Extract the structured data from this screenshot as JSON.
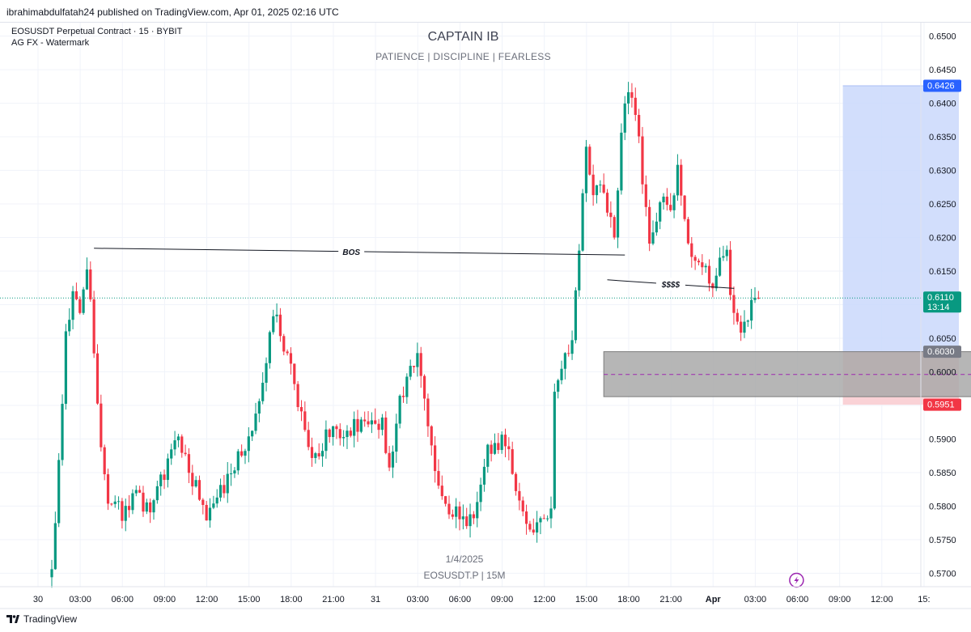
{
  "header": {
    "published": "ibrahimabdulfatah24 published on TradingView.com, Apr 01, 2025 02:16 UTC",
    "symbol_line": "EOSUSDT Perpetual Contract · 15 · BYBIT",
    "indicator_line": "AG FX - Watermark"
  },
  "watermark": {
    "title": "CAPTAIN IB",
    "subtitle": "PATIENCE  |  DISCIPLINE  |  FEARLESS",
    "date": "1/4/2025",
    "symbol": "EOSUSDT.P | 15M"
  },
  "footer": {
    "brand": "TradingView"
  },
  "chart_data": {
    "type": "candlestick",
    "ylim": [
      0.568,
      0.652
    ],
    "price_scale_ticks": [
      0.57,
      0.575,
      0.58,
      0.585,
      0.59,
      0.595,
      0.6,
      0.605,
      0.61,
      0.615,
      0.62,
      0.625,
      0.63,
      0.635,
      0.64,
      0.645,
      0.65
    ],
    "time_ticks": [
      {
        "label": "30",
        "bar": 0
      },
      {
        "label": "03:00",
        "bar": 12
      },
      {
        "label": "06:00",
        "bar": 24
      },
      {
        "label": "09:00",
        "bar": 36
      },
      {
        "label": "12:00",
        "bar": 48
      },
      {
        "label": "15:00",
        "bar": 60
      },
      {
        "label": "18:00",
        "bar": 72
      },
      {
        "label": "21:00",
        "bar": 84
      },
      {
        "label": "31",
        "bar": 96
      },
      {
        "label": "03:00",
        "bar": 108
      },
      {
        "label": "06:00",
        "bar": 120
      },
      {
        "label": "09:00",
        "bar": 132
      },
      {
        "label": "12:00",
        "bar": 144
      },
      {
        "label": "15:00",
        "bar": 156
      },
      {
        "label": "18:00",
        "bar": 168
      },
      {
        "label": "21:00",
        "bar": 180
      },
      {
        "label": "Apr",
        "bar": 192
      },
      {
        "label": "03:00",
        "bar": 204
      },
      {
        "label": "06:00",
        "bar": 216
      },
      {
        "label": "09:00",
        "bar": 228
      },
      {
        "label": "12:00",
        "bar": 240
      },
      {
        "label": "15:",
        "bar": 252
      }
    ],
    "keypoints": [
      [
        0,
        0.57
      ],
      [
        2,
        0.586
      ],
      [
        4,
        0.607
      ],
      [
        6,
        0.611
      ],
      [
        8,
        0.6085
      ],
      [
        10,
        0.616
      ],
      [
        11,
        0.6115
      ],
      [
        14,
        0.589
      ],
      [
        16,
        0.581
      ],
      [
        20,
        0.579
      ],
      [
        24,
        0.5815
      ],
      [
        28,
        0.579
      ],
      [
        32,
        0.585
      ],
      [
        36,
        0.59
      ],
      [
        40,
        0.584
      ],
      [
        44,
        0.579
      ],
      [
        48,
        0.582
      ],
      [
        52,
        0.586
      ],
      [
        56,
        0.59
      ],
      [
        60,
        0.599
      ],
      [
        63,
        0.609
      ],
      [
        66,
        0.604
      ],
      [
        70,
        0.596
      ],
      [
        74,
        0.587
      ],
      [
        76,
        0.587
      ],
      [
        78,
        0.592
      ],
      [
        82,
        0.59
      ],
      [
        86,
        0.592
      ],
      [
        90,
        0.593
      ],
      [
        94,
        0.592
      ],
      [
        96,
        0.585
      ],
      [
        99,
        0.596
      ],
      [
        104,
        0.603
      ],
      [
        108,
        0.588
      ],
      [
        112,
        0.58
      ],
      [
        116,
        0.579
      ],
      [
        120,
        0.577
      ],
      [
        124,
        0.588
      ],
      [
        128,
        0.59
      ],
      [
        131,
        0.586
      ],
      [
        134,
        0.578
      ],
      [
        136,
        0.576
      ],
      [
        140,
        0.5785
      ],
      [
        142,
        0.5795
      ],
      [
        143,
        0.596
      ],
      [
        145,
        0.601
      ],
      [
        148,
        0.604
      ],
      [
        150,
        0.618
      ],
      [
        152,
        0.634
      ],
      [
        154,
        0.626
      ],
      [
        156,
        0.628
      ],
      [
        158,
        0.625
      ],
      [
        160,
        0.62
      ],
      [
        162,
        0.636
      ],
      [
        164,
        0.642
      ],
      [
        166,
        0.639
      ],
      [
        168,
        0.629
      ],
      [
        170,
        0.62
      ],
      [
        172,
        0.623
      ],
      [
        174,
        0.627
      ],
      [
        176,
        0.625
      ],
      [
        178,
        0.63
      ],
      [
        180,
        0.622
      ],
      [
        182,
        0.618
      ],
      [
        185,
        0.616
      ],
      [
        188,
        0.612
      ],
      [
        190,
        0.616
      ],
      [
        192,
        0.617
      ],
      [
        194,
        0.608
      ],
      [
        196,
        0.605
      ],
      [
        198,
        0.608
      ],
      [
        200,
        0.611
      ],
      [
        201,
        0.611
      ]
    ],
    "annotations": {
      "bos": {
        "label": "BOS",
        "from": [
          12,
          0.6184
        ],
        "to": [
          163,
          0.6174
        ]
      },
      "liquidity": {
        "label": "$$$$",
        "from": [
          158,
          0.6137
        ],
        "to": [
          201,
          0.6117
        ]
      },
      "gray_zone": {
        "from_bar": 157,
        "to_bar": 262,
        "top": 0.603,
        "bottom": 0.5963
      },
      "purple_midline": {
        "from_bar": 157,
        "to_bar": 262,
        "price": 0.5996
      },
      "long_position": {
        "from_bar": 225,
        "to_bar": 258,
        "target": 0.6426,
        "entry": 0.603,
        "stop": 0.5951
      }
    },
    "current_price": 0.611,
    "labels": [
      {
        "price": 0.6426,
        "text": "0.6426",
        "color": "#2962ff"
      },
      {
        "price": 0.611,
        "text": "0.6110",
        "subtext": "13:14",
        "color": "#089981"
      },
      {
        "price": 0.603,
        "text": "0.6030",
        "color": "#787b86"
      },
      {
        "price": 0.5951,
        "text": "0.5951",
        "color": "#f23645"
      }
    ],
    "colors": {
      "up": "#089981",
      "down": "#f23645",
      "grid": "#f0f3fa",
      "target_fill": "#cad8fb",
      "stop_fill": "#f9cdd1",
      "zone_fill": "#a9a9a9",
      "midline": "#9c27b0",
      "current_line": "#089981"
    },
    "markers": [
      {
        "name": "lightning-icon",
        "bar": 204,
        "color": "#9c27b0"
      }
    ]
  }
}
